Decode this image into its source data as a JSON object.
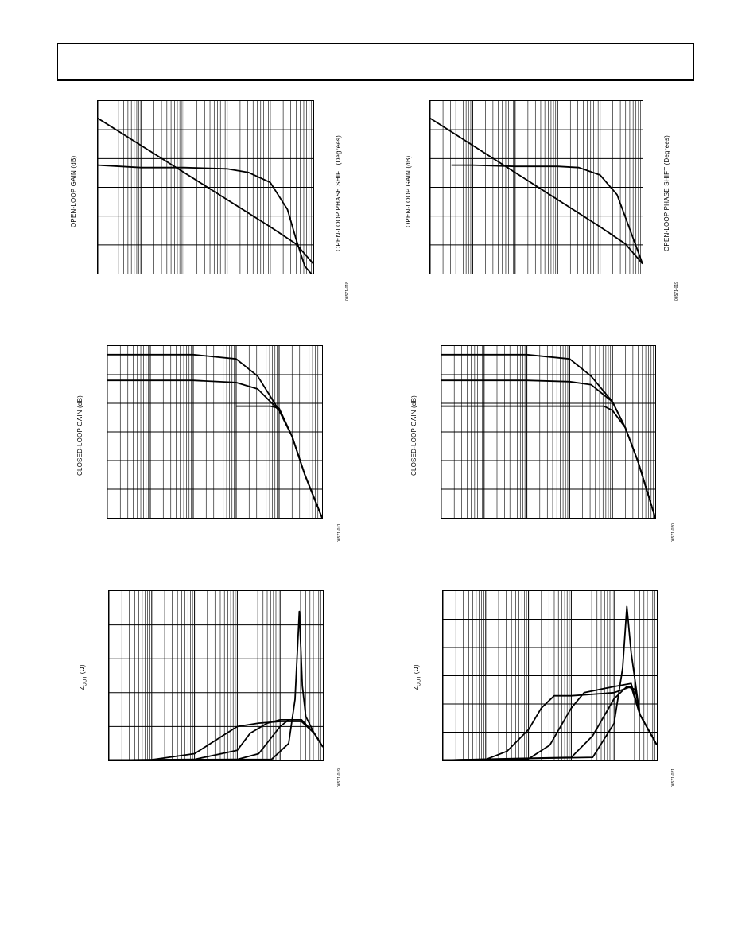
{
  "figures": [
    {
      "id": "fig1",
      "ylabel": "OPEN-LOOP GAIN (dB)",
      "ylabel2": "OPEN-LOOP PHASE SHIFT (Degrees)",
      "code": "06571-018"
    },
    {
      "id": "fig2",
      "ylabel": "OPEN-LOOP GAIN (dB)",
      "ylabel2": "OPEN-LOOP PHASE SHIFT (Degrees)",
      "code": "06571-019"
    },
    {
      "id": "fig3",
      "ylabel": "CLOSED-LOOP GAIN (dB)",
      "code": "06571-011"
    },
    {
      "id": "fig4",
      "ylabel": "CLOSED-LOOP GAIN (dB)",
      "code": "06571-020"
    },
    {
      "id": "fig5",
      "ylabel_main": "Z",
      "ylabel_sub": "OUT",
      "ylabel_unit": "(Ω)",
      "code": "06571-019"
    },
    {
      "id": "fig6",
      "ylabel_main": "Z",
      "ylabel_sub": "OUT",
      "ylabel_unit": "(Ω)",
      "code": "06571-021"
    }
  ],
  "chart_data": [
    {
      "type": "line",
      "x_scale": "log",
      "decades": 5,
      "series": [
        {
          "values": [
            [
              0,
              63
            ],
            [
              1,
              52
            ],
            [
              2,
              41
            ],
            [
              3,
              30
            ],
            [
              4,
              19
            ],
            [
              4.6,
              12
            ],
            [
              5,
              4
            ]
          ]
        },
        {
          "values": [
            [
              0,
              44
            ],
            [
              1,
              43
            ],
            [
              2,
              43
            ],
            [
              3,
              42.5
            ],
            [
              3.5,
              41
            ],
            [
              4,
              37
            ],
            [
              4.4,
              26
            ],
            [
              4.6,
              14
            ],
            [
              4.8,
              3
            ],
            [
              5,
              -1
            ]
          ]
        }
      ],
      "ylim": [
        0,
        70
      ]
    },
    {
      "type": "line",
      "x_scale": "log",
      "decades": 5,
      "series": [
        {
          "values": [
            [
              0,
              63
            ],
            [
              1,
              52
            ],
            [
              2,
              41
            ],
            [
              3,
              30
            ],
            [
              4,
              19
            ],
            [
              4.6,
              12
            ],
            [
              5,
              4
            ]
          ]
        },
        {
          "values": [
            [
              0.5,
              44
            ],
            [
              1,
              44
            ],
            [
              2,
              43.5
            ],
            [
              3,
              43.5
            ],
            [
              3.5,
              43
            ],
            [
              4,
              40
            ],
            [
              4.4,
              32
            ],
            [
              4.7,
              18
            ],
            [
              5,
              4
            ]
          ]
        }
      ],
      "ylim": [
        0,
        70
      ]
    },
    {
      "type": "line",
      "x_scale": "log",
      "decades": 5,
      "series": [
        {
          "values": [
            [
              0,
              53
            ],
            [
              2,
              53
            ],
            [
              3,
              52
            ],
            [
              3.5,
              48
            ],
            [
              4,
              40
            ],
            [
              4.3,
              34
            ],
            [
              4.6,
              25
            ],
            [
              5,
              15
            ]
          ]
        },
        {
          "values": [
            [
              0,
              47
            ],
            [
              2,
              47
            ],
            [
              3,
              46.5
            ],
            [
              3.5,
              45
            ],
            [
              4,
              40
            ],
            [
              4.3,
              34
            ],
            [
              4.6,
              25
            ],
            [
              5,
              15
            ]
          ]
        },
        {
          "values": [
            [
              3,
              41
            ],
            [
              3.8,
              41
            ],
            [
              4,
              40.5
            ],
            [
              4.3,
              34
            ],
            [
              4.6,
              25
            ],
            [
              5,
              15
            ]
          ]
        }
      ],
      "ylim": [
        15,
        55
      ]
    },
    {
      "type": "line",
      "x_scale": "log",
      "decades": 5,
      "series": [
        {
          "values": [
            [
              0,
              53
            ],
            [
              2,
              53
            ],
            [
              3,
              52
            ],
            [
              3.5,
              48
            ],
            [
              4,
              42
            ],
            [
              4.3,
              36
            ],
            [
              4.6,
              28
            ],
            [
              5,
              15
            ]
          ]
        },
        {
          "values": [
            [
              0,
              47
            ],
            [
              2,
              47
            ],
            [
              3,
              46.7
            ],
            [
              3.5,
              46
            ],
            [
              4,
              42
            ],
            [
              4.3,
              36
            ],
            [
              4.6,
              28
            ],
            [
              5,
              15
            ]
          ]
        },
        {
          "values": [
            [
              0,
              41
            ],
            [
              3,
              41
            ],
            [
              3.8,
              41
            ],
            [
              4,
              40
            ],
            [
              4.3,
              36
            ],
            [
              4.6,
              28
            ],
            [
              5,
              15
            ]
          ]
        }
      ],
      "ylim": [
        15,
        55
      ]
    },
    {
      "type": "line",
      "x_scale": "log",
      "decades": 5,
      "series": [
        {
          "values": [
            [
              0,
              0.1
            ],
            [
              1,
              0.2
            ],
            [
              2,
              2
            ],
            [
              2.5,
              6
            ],
            [
              3,
              10
            ],
            [
              3.5,
              11
            ],
            [
              4,
              11.5
            ],
            [
              4.5,
              11.5
            ],
            [
              4.8,
              8
            ],
            [
              5,
              4
            ]
          ]
        },
        {
          "values": [
            [
              0,
              0.1
            ],
            [
              2,
              0.3
            ],
            [
              3,
              3
            ],
            [
              3.3,
              8
            ],
            [
              3.7,
              11
            ],
            [
              4,
              12
            ],
            [
              4.5,
              12
            ],
            [
              4.8,
              8
            ],
            [
              5,
              4
            ]
          ]
        },
        {
          "values": [
            [
              0,
              0.1
            ],
            [
              3,
              0.3
            ],
            [
              3.5,
              2
            ],
            [
              4,
              10
            ],
            [
              4.2,
              12
            ],
            [
              4.5,
              12
            ],
            [
              4.8,
              8
            ],
            [
              5,
              4
            ]
          ]
        },
        {
          "values": [
            [
              0,
              0.1
            ],
            [
              3.8,
              0.3
            ],
            [
              4.2,
              5
            ],
            [
              4.35,
              18
            ],
            [
              4.45,
              44
            ],
            [
              4.52,
              22
            ],
            [
              4.6,
              13
            ],
            [
              4.8,
              8
            ],
            [
              5,
              4
            ]
          ]
        }
      ],
      "ylim": [
        0,
        50
      ]
    },
    {
      "type": "line",
      "x_scale": "log",
      "decades": 5,
      "series": [
        {
          "values": [
            [
              0,
              0.1
            ],
            [
              1,
              0.3
            ],
            [
              1.5,
              3
            ],
            [
              2,
              10
            ],
            [
              2.3,
              17
            ],
            [
              2.6,
              21
            ],
            [
              3,
              21
            ],
            [
              4,
              22
            ],
            [
              4.4,
              24
            ],
            [
              4.6,
              15
            ],
            [
              5,
              5
            ]
          ]
        },
        {
          "values": [
            [
              0,
              0.1
            ],
            [
              2,
              0.5
            ],
            [
              2.5,
              5
            ],
            [
              3,
              17
            ],
            [
              3.3,
              22
            ],
            [
              4,
              24
            ],
            [
              4.4,
              25
            ],
            [
              4.6,
              15
            ],
            [
              5,
              5
            ]
          ]
        },
        {
          "values": [
            [
              0,
              0.1
            ],
            [
              3,
              1
            ],
            [
              3.5,
              8
            ],
            [
              4,
              20
            ],
            [
              4.3,
              24
            ],
            [
              4.5,
              23
            ],
            [
              4.6,
              15
            ],
            [
              5,
              5
            ]
          ]
        },
        {
          "values": [
            [
              0,
              0.1
            ],
            [
              3.5,
              1
            ],
            [
              4,
              12
            ],
            [
              4.2,
              30
            ],
            [
              4.3,
              50
            ],
            [
              4.4,
              35
            ],
            [
              4.5,
              25
            ],
            [
              4.6,
              15
            ],
            [
              5,
              5
            ]
          ]
        }
      ],
      "ylim": [
        0,
        55
      ]
    }
  ]
}
